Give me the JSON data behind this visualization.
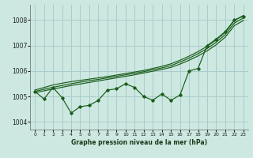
{
  "xlabel": "Graphe pression niveau de la mer (hPa)",
  "bg_color": "#cce8e0",
  "grid_color": "#aacccc",
  "line_color": "#1a5c1a",
  "xlim": [
    -0.5,
    23.5
  ],
  "ylim": [
    1003.7,
    1008.6
  ],
  "yticks": [
    1004,
    1005,
    1006,
    1007,
    1008
  ],
  "xticks": [
    0,
    1,
    2,
    3,
    4,
    5,
    6,
    7,
    8,
    9,
    10,
    11,
    12,
    13,
    14,
    15,
    16,
    17,
    18,
    19,
    20,
    21,
    22,
    23
  ],
  "measured": [
    1005.2,
    1004.9,
    1005.35,
    1004.95,
    1004.35,
    1004.6,
    1004.65,
    1004.85,
    1005.25,
    1005.3,
    1005.5,
    1005.35,
    1005.0,
    1004.85,
    1005.1,
    1004.85,
    1005.05,
    1006.0,
    1006.1,
    1007.0,
    1007.25,
    1007.55,
    1008.0,
    1008.15
  ],
  "trend_high": [
    1005.25,
    1005.35,
    1005.45,
    1005.52,
    1005.58,
    1005.63,
    1005.68,
    1005.73,
    1005.78,
    1005.84,
    1005.9,
    1005.96,
    1006.02,
    1006.1,
    1006.18,
    1006.28,
    1006.42,
    1006.58,
    1006.76,
    1006.97,
    1007.22,
    1007.52,
    1007.98,
    1008.18
  ],
  "trend_low": [
    1005.15,
    1005.22,
    1005.29,
    1005.36,
    1005.43,
    1005.49,
    1005.55,
    1005.61,
    1005.67,
    1005.73,
    1005.79,
    1005.85,
    1005.92,
    1005.99,
    1006.06,
    1006.14,
    1006.27,
    1006.42,
    1006.59,
    1006.79,
    1007.03,
    1007.33,
    1007.78,
    1007.98
  ],
  "trend_mid": [
    1005.2,
    1005.28,
    1005.36,
    1005.43,
    1005.5,
    1005.56,
    1005.62,
    1005.67,
    1005.73,
    1005.79,
    1005.85,
    1005.91,
    1005.97,
    1006.05,
    1006.12,
    1006.21,
    1006.35,
    1006.5,
    1006.68,
    1006.88,
    1007.13,
    1007.43,
    1007.88,
    1008.08
  ]
}
